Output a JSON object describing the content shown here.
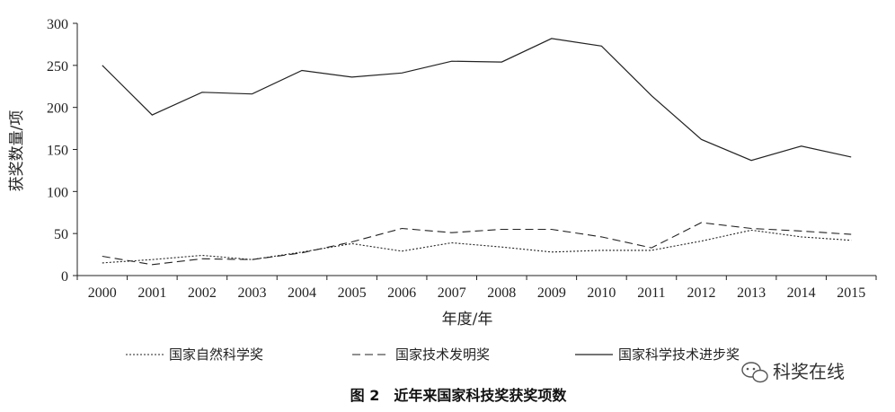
{
  "chart_data": {
    "type": "line",
    "categories": [
      "2000",
      "2001",
      "2002",
      "2003",
      "2004",
      "2005",
      "2006",
      "2007",
      "2008",
      "2009",
      "2010",
      "2011",
      "2012",
      "2013",
      "2014",
      "2015"
    ],
    "series": [
      {
        "name": "国家自然科学奖",
        "style": "dotted",
        "values": [
          15,
          19,
          24,
          19,
          28,
          38,
          29,
          39,
          34,
          28,
          30,
          30,
          41,
          54,
          46,
          42
        ]
      },
      {
        "name": "国家技术发明奖",
        "style": "dashed",
        "values": [
          23,
          13,
          20,
          19,
          27,
          40,
          56,
          51,
          55,
          55,
          46,
          33,
          63,
          56,
          53,
          49
        ]
      },
      {
        "name": "国家科学技术进步奖",
        "style": "solid",
        "values": [
          250,
          191,
          218,
          216,
          244,
          236,
          241,
          255,
          254,
          282,
          273,
          214,
          162,
          137,
          154,
          141
        ]
      }
    ],
    "yticks": [
      "0",
      "50",
      "100",
      "150",
      "200",
      "250",
      "300"
    ],
    "ylim": [
      0,
      300
    ],
    "xlabel": "年度/年",
    "ylabel": "获奖数量/项",
    "legend_position": "bottom",
    "grid": false,
    "caption": "图 2　近年来国家科技奖获奖项数"
  },
  "watermark": {
    "icon": "wechat-icon",
    "text": "科奖在线"
  }
}
